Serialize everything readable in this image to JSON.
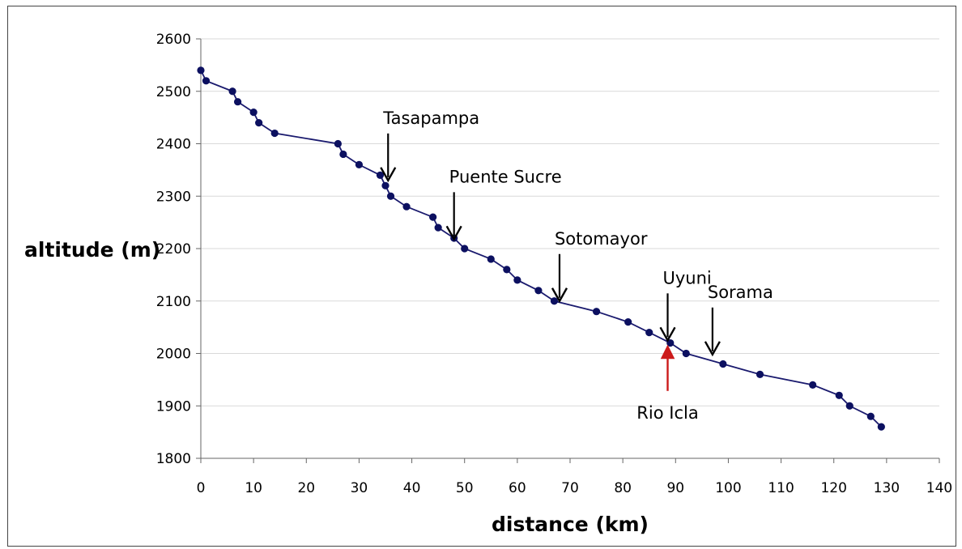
{
  "chart_data": {
    "type": "line",
    "xlabel": "distance (km)",
    "ylabel": "altitude (m)",
    "xlim": [
      0,
      140
    ],
    "ylim": [
      1800,
      2600
    ],
    "xticks": [
      0,
      10,
      20,
      30,
      40,
      50,
      60,
      70,
      80,
      90,
      100,
      110,
      120,
      130,
      140
    ],
    "yticks": [
      1800,
      1900,
      2000,
      2100,
      2200,
      2300,
      2400,
      2500,
      2600
    ],
    "grid": true,
    "x": [
      0,
      1,
      6,
      7,
      10,
      11,
      14,
      26,
      27,
      30,
      34,
      35,
      36,
      39,
      44,
      45,
      48,
      50,
      55,
      58,
      60,
      64,
      67,
      75,
      81,
      85,
      89,
      92,
      99,
      106,
      116,
      121,
      123,
      127,
      129
    ],
    "y": [
      2540,
      2520,
      2500,
      2480,
      2460,
      2440,
      2420,
      2400,
      2380,
      2360,
      2340,
      2320,
      2300,
      2280,
      2260,
      2240,
      2220,
      2200,
      2180,
      2160,
      2140,
      2120,
      2100,
      2080,
      2060,
      2040,
      2020,
      2000,
      1980,
      1960,
      1940,
      1920,
      1900,
      1880,
      1860
    ],
    "line_color": "#1a1a6e",
    "marker_color": "#0c1060",
    "annotations": [
      {
        "label": "Tasapampa",
        "x": 35.5,
        "y": 2330,
        "color": "#000000",
        "direction": "down"
      },
      {
        "label": "Puente Sucre",
        "x": 48,
        "y": 2218,
        "color": "#000000",
        "direction": "down"
      },
      {
        "label": "Sotomayor",
        "x": 68,
        "y": 2100,
        "color": "#000000",
        "direction": "down"
      },
      {
        "label": "Uyuni",
        "x": 88.5,
        "y": 2025,
        "color": "#000000",
        "direction": "down"
      },
      {
        "label": "Sorama",
        "x": 97,
        "y": 1998,
        "color": "#000000",
        "direction": "down"
      },
      {
        "label": "Rio Icla",
        "x": 88.5,
        "y": 2015,
        "color": "#cc1a1a",
        "direction": "up"
      }
    ]
  }
}
